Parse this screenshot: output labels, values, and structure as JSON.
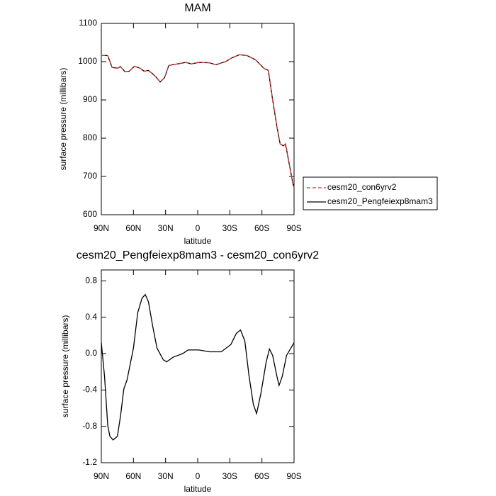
{
  "chart_data": [
    {
      "type": "line",
      "title": "MAM",
      "x_label": "latitude",
      "y_label": "surface pressure (millibars)",
      "x": [
        90,
        84,
        80,
        75,
        72,
        68,
        64,
        59,
        54,
        50,
        46,
        42,
        39,
        35,
        31,
        27,
        19,
        11,
        6,
        -1,
        -11,
        -17,
        -26,
        -32,
        -39,
        -46,
        -54,
        -62,
        -66,
        -70,
        -74,
        -77,
        -80,
        -82,
        -85,
        -89,
        -90
      ],
      "series": [
        {
          "name": "cesm20_Pengfeiexp8mam3",
          "color": "#000000",
          "dash": false,
          "values": [
            1016,
            1016,
            985,
            983,
            987,
            974,
            975,
            988,
            983,
            975,
            977,
            968,
            960,
            947,
            958,
            990,
            994,
            998,
            994,
            998,
            997,
            992,
            1000,
            1010,
            1018,
            1016,
            1005,
            982,
            977,
            900,
            830,
            785,
            780,
            785,
            740,
            680,
            672
          ]
        },
        {
          "name": "cesm20_con6yrv2",
          "color": "#e0302a",
          "dash": true,
          "values": [
            1016,
            1016,
            985,
            983,
            987,
            974,
            975,
            988,
            983,
            975,
            977,
            968,
            960,
            947,
            958,
            990,
            994,
            998,
            994,
            998,
            997,
            992,
            1000,
            1010,
            1018,
            1016,
            1005,
            982,
            977,
            900,
            830,
            785,
            780,
            785,
            740,
            680,
            672
          ]
        }
      ],
      "legend_order": [
        1,
        0
      ],
      "xlim": [
        90,
        -90
      ],
      "xticks": [
        {
          "value": 90,
          "label": "90N"
        },
        {
          "value": 60,
          "label": "60N"
        },
        {
          "value": 30,
          "label": "30N"
        },
        0,
        {
          "value": -30,
          "label": "30S"
        },
        {
          "value": -60,
          "label": "60S"
        },
        {
          "value": -90,
          "label": "90S"
        }
      ],
      "ylim": [
        600,
        1100
      ],
      "yticks": [
        600,
        700,
        800,
        900,
        1000,
        1100
      ]
    },
    {
      "type": "line",
      "title": "cesm20_Pengfeiexp8mam3 - cesm20_con6yrv2",
      "x_label": "latitude",
      "y_label": "surface pressure (millibars)",
      "x": [
        90,
        87,
        84,
        82,
        79,
        75,
        72,
        69,
        66,
        60,
        56,
        52,
        49,
        46,
        42,
        38,
        32,
        29,
        23,
        14,
        9,
        -1,
        -11,
        -22,
        -31,
        -36,
        -40,
        -44,
        -48,
        -52,
        -55,
        -59,
        -64,
        -67,
        -70,
        -74,
        -76,
        -79,
        -83,
        -87,
        -90
      ],
      "series": [
        {
          "color": "#000000",
          "dash": false,
          "values": [
            0.12,
            -0.25,
            -0.79,
            -0.91,
            -0.95,
            -0.91,
            -0.68,
            -0.39,
            -0.29,
            0.06,
            0.45,
            0.61,
            0.65,
            0.57,
            0.3,
            0.06,
            -0.07,
            -0.09,
            -0.04,
            0.0,
            0.04,
            0.04,
            0.02,
            0.02,
            0.1,
            0.22,
            0.26,
            0.14,
            -0.25,
            -0.56,
            -0.66,
            -0.44,
            -0.09,
            0.05,
            -0.02,
            -0.25,
            -0.35,
            -0.25,
            -0.02,
            0.06,
            0.12
          ]
        }
      ],
      "xlim": [
        90,
        -90
      ],
      "xticks": [
        {
          "value": 90,
          "label": "90N"
        },
        {
          "value": 60,
          "label": "60N"
        },
        {
          "value": 30,
          "label": "30N"
        },
        0,
        {
          "value": -30,
          "label": "30S"
        },
        {
          "value": -60,
          "label": "60S"
        },
        {
          "value": -90,
          "label": "90S"
        }
      ],
      "ylim": [
        -1.2,
        0.92
      ],
      "yticks": [
        -1.2,
        -0.8,
        -0.4,
        {
          "value": 0,
          "label": "0.0"
        },
        0.4,
        0.8
      ]
    }
  ]
}
